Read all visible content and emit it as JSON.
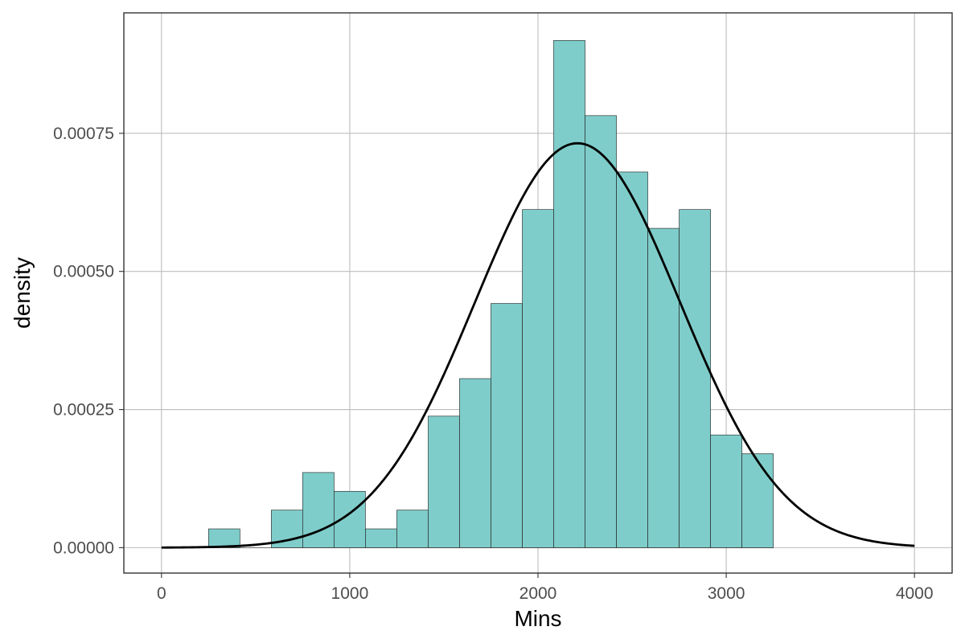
{
  "chart_data": {
    "type": "bar",
    "subtype": "histogram_with_normal_density_curve",
    "title": "",
    "xlabel": "Mins",
    "ylabel": "density",
    "xlim": [
      -200,
      4200
    ],
    "ylim": [
      -4.6e-05,
      0.000968
    ],
    "x_ticks": [
      0,
      1000,
      2000,
      3000,
      4000
    ],
    "x_tick_labels": [
      "0",
      "1000",
      "2000",
      "3000",
      "4000"
    ],
    "y_ticks": [
      0,
      0.00025,
      0.0005,
      0.00075
    ],
    "y_tick_labels": [
      "0.00000",
      "0.00025",
      "0.00050",
      "0.00075"
    ],
    "grid": true,
    "legend": "none",
    "bars": [
      {
        "x0": 250,
        "x1": 416.7,
        "density": 3.4e-05
      },
      {
        "x0": 416.7,
        "x1": 583.3,
        "density": 0.0
      },
      {
        "x0": 583.3,
        "x1": 750,
        "density": 6.8e-05
      },
      {
        "x0": 750,
        "x1": 916.7,
        "density": 0.000136
      },
      {
        "x0": 916.7,
        "x1": 1083.3,
        "density": 0.000102
      },
      {
        "x0": 1083.3,
        "x1": 1250,
        "density": 3.4e-05
      },
      {
        "x0": 1250,
        "x1": 1416.7,
        "density": 6.8e-05
      },
      {
        "x0": 1416.7,
        "x1": 1583.3,
        "density": 0.000238
      },
      {
        "x0": 1583.3,
        "x1": 1750,
        "density": 0.000306
      },
      {
        "x0": 1750,
        "x1": 1916.7,
        "density": 0.000442
      },
      {
        "x0": 1916.7,
        "x1": 2083.3,
        "density": 0.000612
      },
      {
        "x0": 2083.3,
        "x1": 2250,
        "density": 0.000918
      },
      {
        "x0": 2250,
        "x1": 2416.7,
        "density": 0.000782
      },
      {
        "x0": 2416.7,
        "x1": 2583.3,
        "density": 0.00068
      },
      {
        "x0": 2583.3,
        "x1": 2750,
        "density": 0.000578
      },
      {
        "x0": 2750,
        "x1": 2916.7,
        "density": 0.000612
      },
      {
        "x0": 2916.7,
        "x1": 3083.3,
        "density": 0.000204
      },
      {
        "x0": 3083.3,
        "x1": 3250,
        "density": 0.00017
      }
    ],
    "curve": {
      "type": "normal",
      "mean": 2210,
      "sd": 545,
      "x_range": [
        0,
        4000
      ]
    },
    "colors": {
      "bar_fill": "#7fcdca",
      "bar_stroke": "#1a1a1a",
      "curve": "#000000",
      "grid": "#bdbdbd",
      "panel_border": "#333333"
    }
  }
}
